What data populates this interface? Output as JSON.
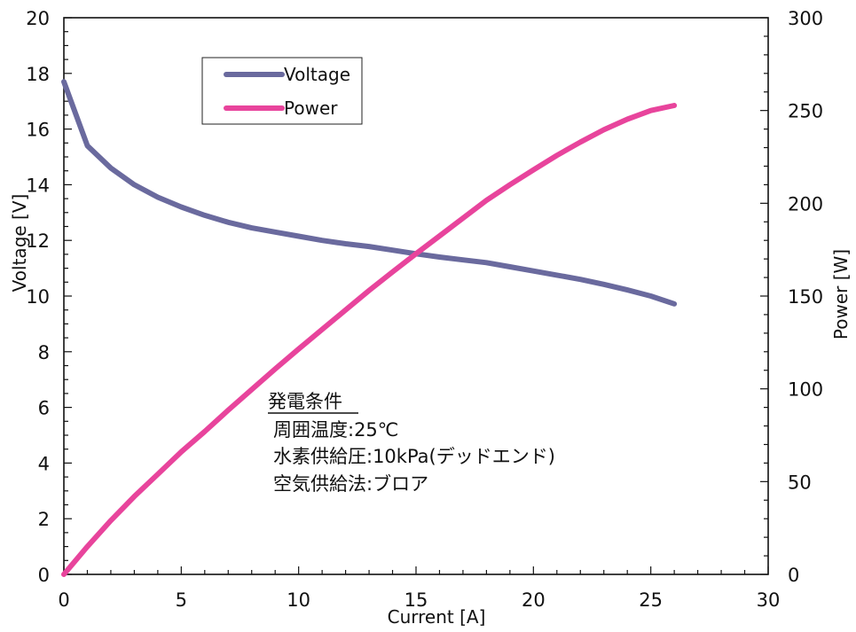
{
  "chart_data": {
    "type": "line",
    "xlabel": "Current [A]",
    "ylabel": "Voltage [V]",
    "y2label": "Power [W]",
    "xlim": [
      0,
      30
    ],
    "ylim": [
      0,
      20
    ],
    "y2lim": [
      0,
      300
    ],
    "x_ticks": [
      "0",
      "5",
      "10",
      "15",
      "20",
      "25",
      "30"
    ],
    "y_ticks": [
      "0",
      "2",
      "4",
      "6",
      "8",
      "10",
      "12",
      "14",
      "16",
      "18",
      "20"
    ],
    "y2_ticks": [
      "0",
      "50",
      "100",
      "150",
      "200",
      "250",
      "300"
    ],
    "grid": false,
    "legend_position": "top-left",
    "series": [
      {
        "name": "Voltage",
        "axis": "left",
        "color": "#6a6a9e",
        "x": [
          0,
          1,
          2,
          3,
          4,
          5,
          6,
          7,
          8,
          9,
          10,
          11,
          12,
          13,
          14,
          15,
          16,
          17,
          18,
          19,
          20,
          21,
          22,
          23,
          24,
          25,
          26
        ],
        "y": [
          17.7,
          15.4,
          14.6,
          14.0,
          13.55,
          13.2,
          12.9,
          12.65,
          12.45,
          12.3,
          12.15,
          12.0,
          11.88,
          11.78,
          11.65,
          11.52,
          11.4,
          11.3,
          11.2,
          11.05,
          10.9,
          10.75,
          10.6,
          10.42,
          10.22,
          10.0,
          9.72
        ]
      },
      {
        "name": "Power",
        "axis": "right",
        "color": "#e8449c",
        "x": [
          0,
          1,
          2,
          3,
          4,
          5,
          6,
          7,
          8,
          9,
          10,
          11,
          12,
          13,
          14,
          15,
          16,
          17,
          18,
          19,
          20,
          21,
          22,
          23,
          24,
          25,
          26
        ],
        "y": [
          0,
          15,
          29,
          42,
          54,
          66,
          77,
          88.5,
          99.6,
          110.7,
          121.5,
          132,
          142.5,
          153,
          163,
          172.8,
          182.4,
          192,
          201.6,
          210,
          218,
          225.8,
          233,
          239.6,
          245.3,
          250,
          252.7
        ]
      }
    ],
    "annotation": {
      "heading": "発電条件",
      "lines": [
        "周囲温度:25℃",
        "水素供給圧:10kPa(デッドエンド)",
        "空気供給法:ブロア"
      ]
    }
  }
}
